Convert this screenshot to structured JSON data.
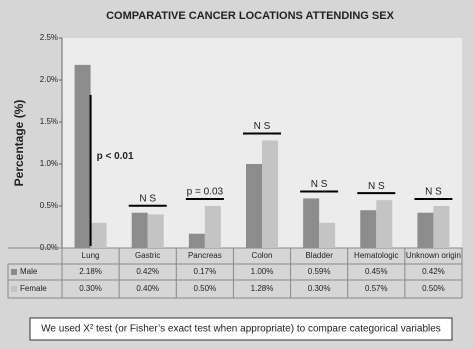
{
  "chart_data": {
    "type": "bar",
    "title": "COMPARATIVE CANCER LOCATIONS ATTENDING SEX",
    "ylabel": "Percentage (%)",
    "categories": [
      "Lung",
      "Gastric",
      "Pancreas",
      "Colon",
      "Bladder",
      "Hematologic",
      "Unknown origin"
    ],
    "series": [
      {
        "name": "Male",
        "color": "#8c8c8c",
        "values": [
          2.18,
          0.42,
          0.17,
          1.0,
          0.59,
          0.45,
          0.42
        ],
        "value_labels": [
          "2.18%",
          "0.42%",
          "0.17%",
          "1.00%",
          "0.59%",
          "0.45%",
          "0.42%"
        ]
      },
      {
        "name": "Female",
        "color": "#c4c4c4",
        "values": [
          0.3,
          0.4,
          0.5,
          1.28,
          0.3,
          0.57,
          0.5
        ],
        "value_labels": [
          "0.30%",
          "0.40%",
          "0.50%",
          "1.28%",
          "0.30%",
          "0.57%",
          "0.50%"
        ]
      }
    ],
    "annotations": [
      "p < 0.01",
      "N S",
      "p = 0.03",
      "N S",
      "N S",
      "N S",
      "N S"
    ],
    "ylim": [
      0,
      2.5
    ],
    "yticks": [
      {
        "value": 0,
        "label": "0.0%"
      },
      {
        "value": 0.5,
        "label": "0.5%"
      },
      {
        "value": 1.0,
        "label": "1.0%"
      },
      {
        "value": 1.5,
        "label": "1.5%"
      },
      {
        "value": 2.0,
        "label": "2.0%"
      },
      {
        "value": 2.5,
        "label": "2.5%"
      }
    ],
    "grid": false,
    "footnote": "We used X² test (or Fisher’s exact test when appropriate) to compare categorical variables"
  }
}
